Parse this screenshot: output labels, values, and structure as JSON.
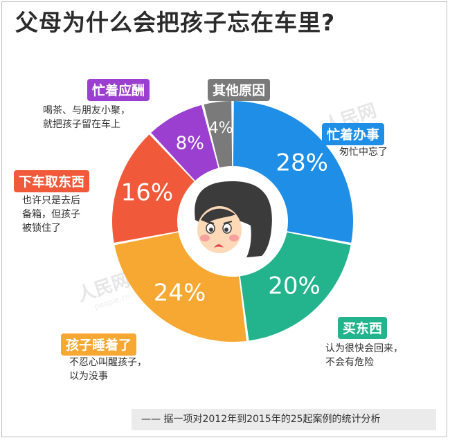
{
  "title": "父母为什么会把孩子忘在车里?",
  "watermark": "人民网",
  "watermark_url": "people.cn",
  "source_note": "—— 据一项对2012年到2015年的25起案例的统计分析",
  "chart_data": {
    "type": "pie",
    "donut": true,
    "value_unit": "%",
    "series": [
      {
        "name": "忙着办事",
        "value": 28,
        "color": "#1e8ee6",
        "label": "28%",
        "description": "匆忙中忘了"
      },
      {
        "name": "买东西",
        "value": 20,
        "color": "#23b38d",
        "label": "20%",
        "description": "认为很快会回来，\n不会有危险"
      },
      {
        "name": "孩子睡着了",
        "value": 24,
        "color": "#f7a832",
        "label": "24%",
        "description": "不忍心叫醒孩子，\n以为没事"
      },
      {
        "name": "下车取东西",
        "value": 16,
        "color": "#f05a3a",
        "label": "16%",
        "description": "也许只是去后\n备箱，但孩子\n被锁住了"
      },
      {
        "name": "忙着应酬",
        "value": 8,
        "color": "#9b3fd0",
        "label": "8%",
        "description": "喝茶、与朋友小聚，\n就把孩子留在车上"
      },
      {
        "name": "其他原因",
        "value": 4,
        "color": "#7a7a7a",
        "label": "4%",
        "description": ""
      }
    ]
  }
}
